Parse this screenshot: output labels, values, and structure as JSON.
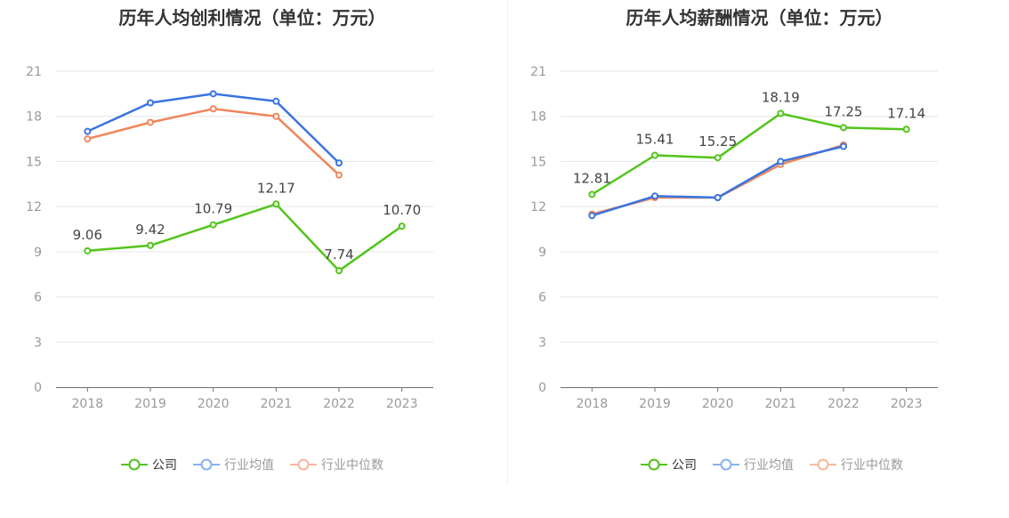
{
  "chart_data": [
    {
      "type": "line",
      "title": "历年人均创利情况（单位：万元）",
      "categories": [
        "2018",
        "2019",
        "2020",
        "2021",
        "2022",
        "2023"
      ],
      "y_ticks": [
        "0",
        "3",
        "6",
        "9",
        "12",
        "15",
        "18",
        "21"
      ],
      "ylim": [
        0,
        21
      ],
      "grid": true,
      "legend_position": "bottom",
      "series": [
        {
          "name": "公司",
          "color": "#52c41a",
          "values": [
            9.06,
            9.42,
            10.79,
            12.17,
            7.74,
            10.7
          ],
          "labels": [
            "9.06",
            "9.42",
            "10.79",
            "12.17",
            "7.74",
            "10.70"
          ]
        },
        {
          "name": "行业均值",
          "color": "#3a74e0",
          "values": [
            17.0,
            18.9,
            19.5,
            19.0,
            14.9,
            null
          ]
        },
        {
          "name": "行业中位数",
          "color": "#f0865a",
          "values": [
            16.5,
            17.6,
            18.5,
            18.0,
            14.1,
            null
          ]
        }
      ]
    },
    {
      "type": "line",
      "title": "历年人均薪酬情况（单位：万元）",
      "categories": [
        "2018",
        "2019",
        "2020",
        "2021",
        "2022",
        "2023"
      ],
      "y_ticks": [
        "0",
        "3",
        "6",
        "9",
        "12",
        "15",
        "18",
        "21"
      ],
      "ylim": [
        0,
        21
      ],
      "grid": true,
      "legend_position": "bottom",
      "series": [
        {
          "name": "公司",
          "color": "#52c41a",
          "values": [
            12.81,
            15.41,
            15.25,
            18.19,
            17.25,
            17.14
          ],
          "labels": [
            "12.81",
            "15.41",
            "15.25",
            "18.19",
            "17.25",
            "17.14"
          ]
        },
        {
          "name": "行业均值",
          "color": "#3a74e0",
          "values": [
            11.4,
            12.7,
            12.6,
            15.0,
            16.0,
            null
          ]
        },
        {
          "name": "行业中位数",
          "color": "#f0865a",
          "values": [
            11.5,
            12.6,
            12.6,
            14.8,
            16.1,
            null
          ]
        }
      ]
    }
  ],
  "legend": {
    "items": [
      {
        "label": "公司",
        "color": "#52c41a",
        "text_color": "#333333",
        "ring_color": "#52c41a"
      },
      {
        "label": "行业均值",
        "color": "#8ab0ef",
        "text_color": "#999999",
        "ring_color": "#8ab0ef"
      },
      {
        "label": "行业中位数",
        "color": "#f7b7a0",
        "text_color": "#999999",
        "ring_color": "#f7b7a0"
      }
    ]
  },
  "colors": {
    "grid": "#e6e6e6",
    "axis": "#6e6e6e",
    "tick_text": "#999999",
    "label_text": "#444444"
  }
}
